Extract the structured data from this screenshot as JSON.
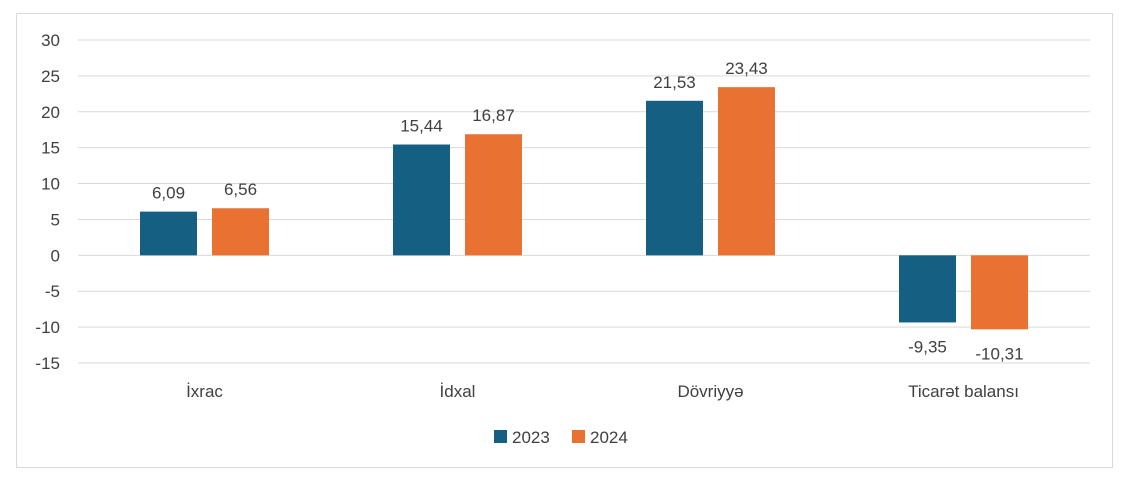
{
  "chart_data": {
    "type": "bar",
    "categories": [
      "İxrac",
      "İdxal",
      "Dövriyyə",
      "Ticarət balansı"
    ],
    "series": [
      {
        "name": "2023",
        "color": "#156082",
        "values": [
          6.09,
          15.44,
          21.53,
          -9.35
        ],
        "labels": [
          "6,09",
          "15,44",
          "21,53",
          "-9,35"
        ]
      },
      {
        "name": "2024",
        "color": "#E97132",
        "values": [
          6.56,
          16.87,
          23.43,
          -10.31
        ],
        "labels": [
          "6,56",
          "16,87",
          "23,43",
          "-10,31"
        ]
      }
    ],
    "ylim": [
      -15,
      30
    ],
    "yticks": [
      30,
      25,
      20,
      15,
      10,
      5,
      0,
      -5,
      -10,
      -15
    ],
    "ytick_labels": [
      "30",
      "25",
      "20",
      "15",
      "10",
      "5",
      "0",
      "-5",
      "-10",
      "-15"
    ],
    "grid": true,
    "legend_position": "bottom",
    "title": "",
    "xlabel": "",
    "ylabel": ""
  }
}
